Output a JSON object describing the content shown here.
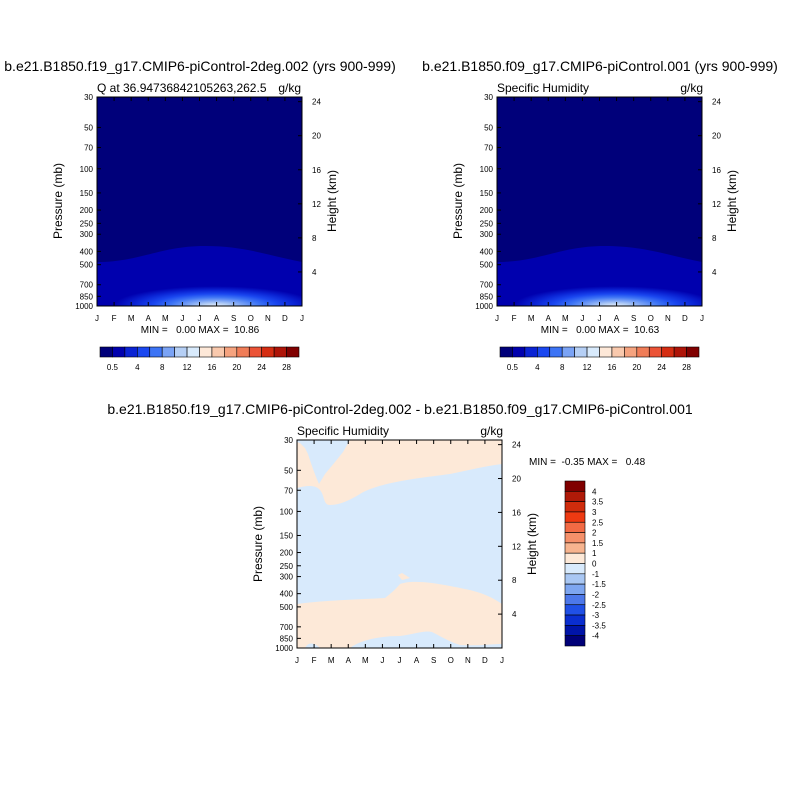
{
  "chart_data": [
    {
      "type": "heatmap",
      "id": "p1",
      "title": "b.e21.B1850.f19_g17.CMIP6-piControl-2deg.002 (yrs 900-999)",
      "left_label": "Q at 36.94736842105263,262.5",
      "units": "g/kg",
      "ylabel": "Pressure (mb)",
      "ylabel_right": "Height (km)",
      "x_ticks": [
        "J",
        "F",
        "M",
        "A",
        "M",
        "J",
        "J",
        "A",
        "S",
        "O",
        "N",
        "D",
        "J"
      ],
      "pressure_ticks": [
        "30",
        "50",
        "70",
        "100",
        "150",
        "200",
        "250",
        "300",
        "400",
        "500",
        "700",
        "850",
        "1000"
      ],
      "height_ticks": [
        "4",
        "8",
        "12",
        "16",
        "20",
        "24"
      ],
      "stats": "MIN =   0.00 MAX =  10.86",
      "min": 0.0,
      "max": 10.86,
      "colorbar": {
        "labels": [
          "0.5",
          "4",
          "8",
          "12",
          "16",
          "20",
          "24",
          "28"
        ],
        "colors": [
          "#00007a",
          "#0000ae",
          "#0a23d4",
          "#1a47f0",
          "#3d74f5",
          "#7aa3f5",
          "#b5cff5",
          "#d8eafc",
          "#fde8d8",
          "#f9c9ad",
          "#f5a37f",
          "#f07d58",
          "#eb5336",
          "#d52d12",
          "#ae1408",
          "#800000"
        ]
      }
    },
    {
      "type": "heatmap",
      "id": "p2",
      "title": "b.e21.B1850.f09_g17.CMIP6-piControl.001 (yrs 900-999)",
      "left_label": "Specific Humidity",
      "units": "g/kg",
      "ylabel": "Pressure (mb)",
      "ylabel_right": "Height (km)",
      "x_ticks": [
        "J",
        "F",
        "M",
        "A",
        "M",
        "J",
        "J",
        "A",
        "S",
        "O",
        "N",
        "D",
        "J"
      ],
      "pressure_ticks": [
        "30",
        "50",
        "70",
        "100",
        "150",
        "200",
        "250",
        "300",
        "400",
        "500",
        "700",
        "850",
        "1000"
      ],
      "height_ticks": [
        "4",
        "8",
        "12",
        "16",
        "20",
        "24"
      ],
      "stats": "MIN =   0.00 MAX =  10.63",
      "min": 0.0,
      "max": 10.63,
      "colorbar": {
        "labels": [
          "0.5",
          "4",
          "8",
          "12",
          "16",
          "20",
          "24",
          "28"
        ],
        "colors": [
          "#00007a",
          "#0000ae",
          "#0a23d4",
          "#1a47f0",
          "#3d74f5",
          "#7aa3f5",
          "#b5cff5",
          "#d8eafc",
          "#fde8d8",
          "#f9c9ad",
          "#f5a37f",
          "#f07d58",
          "#eb5336",
          "#d52d12",
          "#ae1408",
          "#800000"
        ]
      }
    },
    {
      "type": "heatmap",
      "id": "diff",
      "title": "b.e21.B1850.f19_g17.CMIP6-piControl-2deg.002 - b.e21.B1850.f09_g17.CMIP6-piControl.001",
      "left_label": "Specific Humidity",
      "units": "g/kg",
      "ylabel": "Pressure (mb)",
      "ylabel_right": "Height (km)",
      "x_ticks": [
        "J",
        "F",
        "M",
        "A",
        "M",
        "J",
        "J",
        "A",
        "S",
        "O",
        "N",
        "D",
        "J"
      ],
      "pressure_ticks": [
        "30",
        "50",
        "70",
        "100",
        "150",
        "200",
        "250",
        "300",
        "400",
        "500",
        "700",
        "850",
        "1000"
      ],
      "height_ticks": [
        "4",
        "8",
        "12",
        "16",
        "20",
        "24"
      ],
      "stats": "MIN =  -0.35 MAX =   0.48",
      "min": -0.35,
      "max": 0.48,
      "colorbar": {
        "labels": [
          "4",
          "3.5",
          "3",
          "2.5",
          "2",
          "1.5",
          "1",
          "0",
          "-1",
          "-1.5",
          "-2",
          "-2.5",
          "-3",
          "-3.5",
          "-4"
        ],
        "colors": [
          "#800000",
          "#b01a08",
          "#d02c0c",
          "#ee3a12",
          "#f26a44",
          "#f5906a",
          "#f7b48f",
          "#fde9d8",
          "#d8eafc",
          "#a9c7f3",
          "#7ea6f0",
          "#4d78ea",
          "#2050e6",
          "#0a2ed0",
          "#0014a8",
          "#000078"
        ]
      }
    }
  ]
}
